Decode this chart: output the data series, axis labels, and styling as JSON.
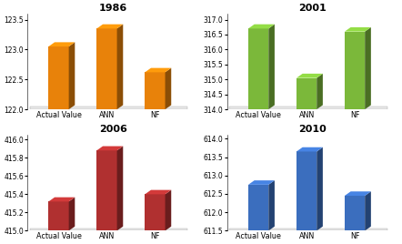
{
  "charts": [
    {
      "title": "1986",
      "categories": [
        "Actual Value",
        "ANN",
        "NF"
      ],
      "values": [
        123.05,
        123.35,
        122.62
      ],
      "ylim": [
        122,
        123.6
      ],
      "yticks": [
        122,
        122.5,
        123,
        123.5
      ],
      "color": "#E8820A",
      "row": 0,
      "col": 0
    },
    {
      "title": "2001",
      "categories": [
        "Actual Value",
        "ANN",
        "NF"
      ],
      "values": [
        316.7,
        315.05,
        316.6
      ],
      "ylim": [
        314,
        317.2
      ],
      "yticks": [
        314,
        314.5,
        315,
        315.5,
        316,
        316.5,
        317
      ],
      "color": "#7BB83A",
      "row": 0,
      "col": 1
    },
    {
      "title": "2006",
      "categories": [
        "Actual Value",
        "ANN",
        "NF"
      ],
      "values": [
        415.32,
        415.88,
        415.4
      ],
      "ylim": [
        415,
        416.05
      ],
      "yticks": [
        415,
        415.2,
        415.4,
        415.6,
        415.8,
        416
      ],
      "color": "#B03030",
      "row": 1,
      "col": 0
    },
    {
      "title": "2010",
      "categories": [
        "Actual Value",
        "ANN",
        "NF"
      ],
      "values": [
        612.75,
        613.65,
        612.45
      ],
      "ylim": [
        611.5,
        614.1
      ],
      "yticks": [
        611.5,
        612,
        612.5,
        613,
        613.5,
        614
      ],
      "color": "#3B6EBE",
      "row": 1,
      "col": 1
    }
  ],
  "bg_color": "#FFFFFF",
  "title_fontsize": 8,
  "tick_fontsize": 5.5,
  "label_fontsize": 5.8
}
